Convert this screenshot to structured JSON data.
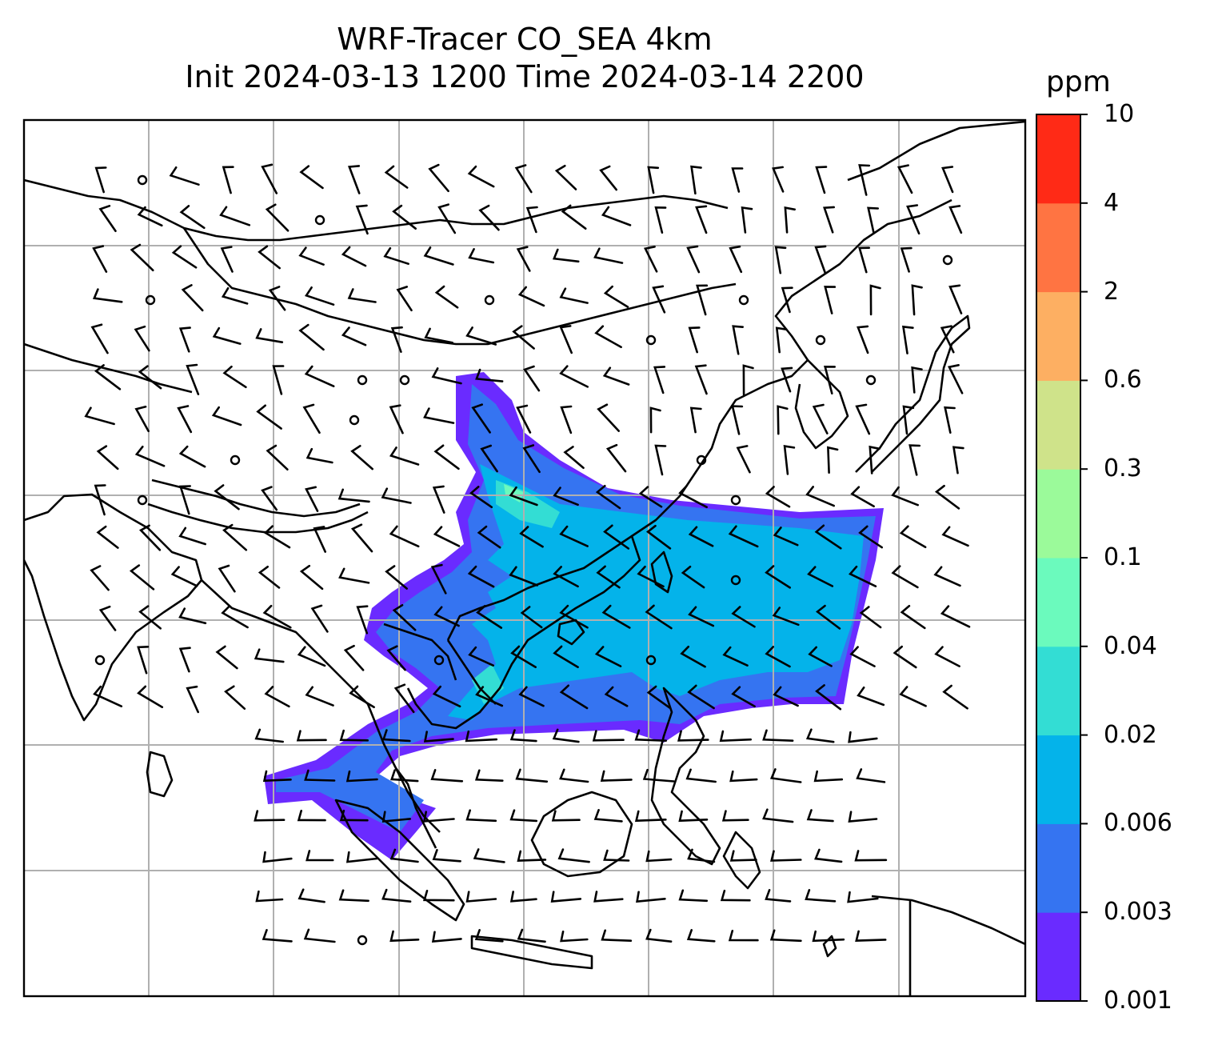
{
  "title": {
    "line1": "WRF-Tracer CO_SEA 4km",
    "line2": "Init 2024-03-13 1200 Time 2024-03-14 2200"
  },
  "map": {
    "variable": "tracer CO",
    "overlay": "wind barbs",
    "coastline_color": "#000000",
    "gridline_color": "#b0b0b0"
  },
  "colorbar": {
    "unit": "ppm",
    "levels": [
      "0.001",
      "0.003",
      "0.006",
      "0.02",
      "0.04",
      "0.1",
      "0.3",
      "0.6",
      "2",
      "4",
      "10"
    ],
    "colors": [
      "#6a2bff",
      "#3574f1",
      "#04b3ea",
      "#33ddd4",
      "#6bfabd",
      "#9bfa9a",
      "#cfe38a",
      "#fdaf62",
      "#ff7442",
      "#ff2a16"
    ]
  }
}
